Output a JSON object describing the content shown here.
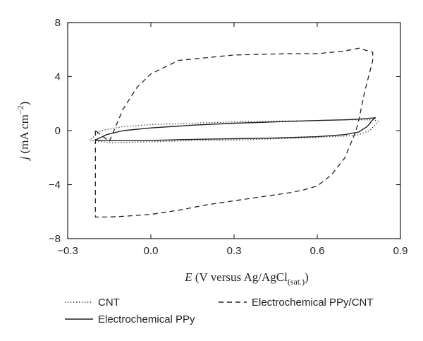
{
  "chart_data": {
    "type": "line",
    "title": "",
    "xlabel": {
      "symbol": "E",
      "text": " (V versus Ag/AgCl",
      "subscript": "(sat.)",
      "close": ")"
    },
    "ylabel": {
      "symbol": "j",
      "text": " (mA cm",
      "superscript": "−2",
      "close": ")"
    },
    "xlim": [
      -0.3,
      0.9
    ],
    "ylim": [
      -8,
      8
    ],
    "xticks": [
      -0.3,
      0.0,
      0.3,
      0.6,
      0.9
    ],
    "xtick_labels": [
      "−0.3",
      "0.0",
      "0.3",
      "0.6",
      "0.9"
    ],
    "yticks": [
      -8,
      -4,
      0,
      4,
      8
    ],
    "ytick_labels": [
      "−8",
      "−4",
      "0",
      "4",
      "8"
    ],
    "grid": false,
    "legend_position": "bottom",
    "series": [
      {
        "name": "CNT",
        "style": "dotted",
        "color": "#231f20",
        "x": [
          -0.22,
          -0.15,
          -0.05,
          0.05,
          0.15,
          0.3,
          0.45,
          0.6,
          0.7,
          0.75,
          0.79,
          0.82,
          0.8,
          0.75,
          0.7,
          0.6,
          0.45,
          0.3,
          0.15,
          0.0,
          -0.1,
          -0.18,
          -0.22
        ],
        "y": [
          -0.7,
          -0.9,
          -0.85,
          -0.8,
          -0.75,
          -0.7,
          -0.6,
          -0.5,
          -0.4,
          -0.3,
          0.0,
          0.7,
          0.8,
          0.8,
          0.8,
          0.75,
          0.7,
          0.65,
          0.55,
          0.45,
          0.3,
          0.0,
          -0.7
        ]
      },
      {
        "name": "Electrochemical PPy",
        "style": "solid",
        "color": "#231f20",
        "x": [
          -0.2,
          -0.15,
          -0.05,
          0.05,
          0.15,
          0.3,
          0.45,
          0.6,
          0.7,
          0.75,
          0.78,
          0.8,
          0.81,
          0.78,
          0.75,
          0.7,
          0.6,
          0.45,
          0.3,
          0.15,
          0.0,
          -0.1,
          -0.16,
          -0.2
        ],
        "y": [
          -0.7,
          -0.75,
          -0.75,
          -0.7,
          -0.65,
          -0.6,
          -0.55,
          -0.45,
          -0.3,
          -0.1,
          0.3,
          0.8,
          0.95,
          0.9,
          0.85,
          0.8,
          0.75,
          0.65,
          0.55,
          0.4,
          0.2,
          0.0,
          -0.3,
          -0.7
        ]
      },
      {
        "name": "Electrochemical PPy/CNT",
        "style": "dashed",
        "color": "#231f20",
        "x": [
          -0.2,
          -0.2,
          -0.15,
          -0.1,
          0.0,
          0.1,
          0.2,
          0.3,
          0.4,
          0.5,
          0.55,
          0.6,
          0.65,
          0.7,
          0.72,
          0.74,
          0.75,
          0.77,
          0.8,
          0.8,
          0.75,
          0.7,
          0.6,
          0.5,
          0.3,
          0.1,
          0.0,
          -0.05,
          -0.1,
          -0.15,
          -0.2
        ],
        "y": [
          0.0,
          -6.4,
          -6.4,
          -6.35,
          -6.2,
          -5.9,
          -5.5,
          -5.2,
          -4.9,
          -4.6,
          -4.4,
          -4.1,
          -3.3,
          -2.0,
          -1.0,
          0.0,
          0.8,
          2.8,
          5.2,
          5.8,
          6.1,
          5.9,
          5.7,
          5.7,
          5.6,
          5.2,
          4.2,
          3.2,
          1.6,
          -0.8,
          0.0
        ]
      }
    ]
  }
}
